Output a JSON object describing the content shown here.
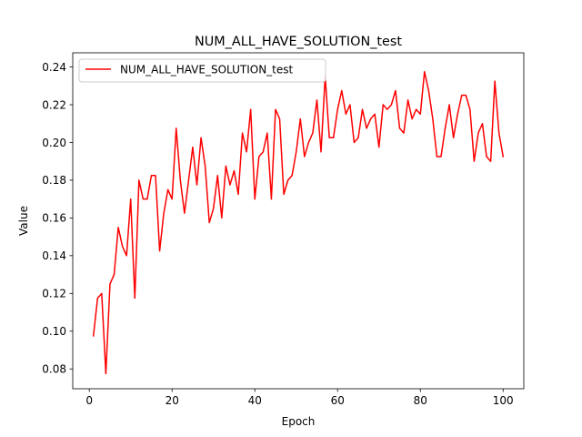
{
  "chart_data": {
    "type": "line",
    "title": "NUM_ALL_HAVE_SOLUTION_test",
    "xlabel": "Epoch",
    "ylabel": "Value",
    "xlim": [
      -4,
      105
    ],
    "ylim": [
      0.0695,
      0.2475
    ],
    "xticks": [
      0,
      20,
      40,
      60,
      80,
      100
    ],
    "yticks": [
      0.08,
      0.1,
      0.12,
      0.14,
      0.16,
      0.18,
      0.2,
      0.22,
      0.24
    ],
    "grid": false,
    "legend_position": "upper-left",
    "series": [
      {
        "name": "NUM_ALL_HAVE_SOLUTION_test",
        "color": "#ff0000",
        "x": [
          1,
          2,
          3,
          4,
          5,
          6,
          7,
          8,
          9,
          10,
          11,
          12,
          13,
          14,
          15,
          16,
          17,
          18,
          19,
          20,
          21,
          22,
          23,
          24,
          25,
          26,
          27,
          28,
          29,
          30,
          31,
          32,
          33,
          34,
          35,
          36,
          37,
          38,
          39,
          40,
          41,
          42,
          43,
          44,
          45,
          46,
          47,
          48,
          49,
          50,
          51,
          52,
          53,
          54,
          55,
          56,
          57,
          58,
          59,
          60,
          61,
          62,
          63,
          64,
          65,
          66,
          67,
          68,
          69,
          70,
          71,
          72,
          73,
          74,
          75,
          76,
          77,
          78,
          79,
          80,
          81,
          82,
          83,
          84,
          85,
          86,
          87,
          88,
          89,
          90,
          91,
          92,
          93,
          94,
          95,
          96,
          97,
          98,
          99,
          100
        ],
        "y": [
          0.0975,
          0.1175,
          0.12,
          0.0775,
          0.125,
          0.13,
          0.155,
          0.145,
          0.14,
          0.17,
          0.1175,
          0.18,
          0.17,
          0.17,
          0.1825,
          0.1825,
          0.1425,
          0.1625,
          0.175,
          0.17,
          0.2075,
          0.18,
          0.1625,
          0.18,
          0.1975,
          0.1775,
          0.2025,
          0.1875,
          0.1575,
          0.165,
          0.1825,
          0.16,
          0.1875,
          0.1775,
          0.185,
          0.1725,
          0.205,
          0.195,
          0.2175,
          0.17,
          0.1925,
          0.195,
          0.205,
          0.17,
          0.2175,
          0.2125,
          0.1725,
          0.18,
          0.1825,
          0.195,
          0.2125,
          0.1925,
          0.2,
          0.205,
          0.2225,
          0.195,
          0.235,
          0.2025,
          0.2025,
          0.2175,
          0.2275,
          0.215,
          0.22,
          0.2,
          0.2025,
          0.2175,
          0.2075,
          0.2125,
          0.215,
          0.1975,
          0.22,
          0.2175,
          0.22,
          0.2275,
          0.2075,
          0.205,
          0.2225,
          0.2125,
          0.2175,
          0.215,
          0.2375,
          0.2275,
          0.2125,
          0.1925,
          0.1925,
          0.2075,
          0.22,
          0.2025,
          0.215,
          0.225,
          0.225,
          0.2175,
          0.19,
          0.205,
          0.21,
          0.1925,
          0.19,
          0.2325,
          0.205,
          0.1925
        ]
      }
    ]
  }
}
